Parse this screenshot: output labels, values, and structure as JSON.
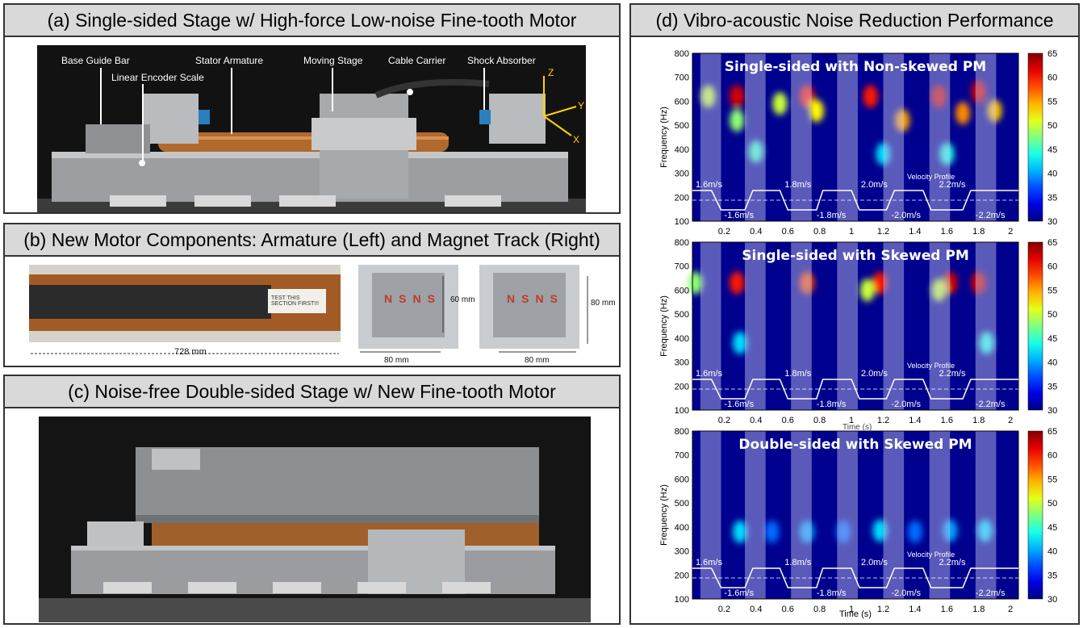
{
  "panel_a": {
    "title": "(a) Single-sided Stage w/ High-force Low-noise Fine-tooth Motor",
    "labels": {
      "base_guide_bar": "Base Guide Bar",
      "linear_encoder": "Linear Encoder Scale",
      "stator_armature": "Stator Armature",
      "moving_stage": "Moving Stage",
      "cable_carrier": "Cable Carrier",
      "shock_absorber": "Shock Absorber"
    },
    "axes": {
      "z": "Z",
      "y": "Y",
      "x": "X"
    }
  },
  "panel_b": {
    "title": "(b) New Motor Components: Armature (Left) and Magnet Track (Right)",
    "armature_length": "728 mm",
    "note": "TEST THIS SECTION FIRST!!!",
    "track1": {
      "height": "60 mm",
      "width": "80 mm",
      "marks": [
        "N",
        "S",
        "N",
        "S"
      ]
    },
    "track2": {
      "height": "80 mm",
      "width": "80 mm",
      "marks": [
        "N",
        "S",
        "N",
        "S"
      ]
    }
  },
  "panel_c": {
    "title": "(c) Noise-free Double-sided Stage w/ New Fine-tooth Motor"
  },
  "panel_d": {
    "title": "(d) Vibro-acoustic Noise Reduction Performance",
    "x_overlap_label": "Time (s)",
    "x_label": "Time (s)",
    "colors": {
      "bar_low": "#00008f",
      "bar_high": "#800000",
      "profile": "#ffffff",
      "band": "#c8c8f0"
    }
  },
  "chart_data": [
    {
      "type": "heatmap",
      "title": "Single-sided with Non-skewed PM",
      "ylabel": "Frequency (Hz)",
      "xlim": [
        0,
        2.05
      ],
      "ylim": [
        100,
        800
      ],
      "x_ticks": [
        0.2,
        0.4,
        0.6,
        0.8,
        1,
        1.2,
        1.4,
        1.6,
        1.8,
        2
      ],
      "y_ticks": [
        100,
        200,
        300,
        400,
        500,
        600,
        700,
        800
      ],
      "colorbar": {
        "range": [
          30,
          65
        ],
        "ticks": [
          30,
          35,
          40,
          45,
          50,
          55,
          60,
          65
        ]
      },
      "velocity_profile_label": "Velocity Profile",
      "velocity_labels": [
        "1.6m/s",
        "-1.6m/s",
        "1.8m/s",
        "-1.8m/s",
        "2.0m/s",
        "-2.0m/s",
        "2.2m/s",
        "-2.2m/s"
      ],
      "hotspots": [
        {
          "t": 0.28,
          "f": 620,
          "level": 62
        },
        {
          "t": 0.28,
          "f": 520,
          "level": 48
        },
        {
          "t": 0.55,
          "f": 590,
          "level": 50
        },
        {
          "t": 0.72,
          "f": 620,
          "level": 60
        },
        {
          "t": 0.78,
          "f": 560,
          "level": 52
        },
        {
          "t": 1.12,
          "f": 620,
          "level": 60
        },
        {
          "t": 1.32,
          "f": 520,
          "level": 55
        },
        {
          "t": 1.55,
          "f": 620,
          "level": 62
        },
        {
          "t": 1.7,
          "f": 550,
          "level": 56
        },
        {
          "t": 1.8,
          "f": 640,
          "level": 62
        },
        {
          "t": 1.9,
          "f": 560,
          "level": 54
        },
        {
          "t": 0.1,
          "f": 620,
          "level": 50
        },
        {
          "t": 0.4,
          "f": 390,
          "level": 45
        },
        {
          "t": 1.2,
          "f": 380,
          "level": 42
        },
        {
          "t": 1.6,
          "f": 380,
          "level": 44
        }
      ]
    },
    {
      "type": "heatmap",
      "title": "Single-sided with Skewed PM",
      "ylabel": "Frequency (Hz)",
      "xlim": [
        0,
        2.05
      ],
      "ylim": [
        100,
        800
      ],
      "x_ticks": [
        0.2,
        0.4,
        0.6,
        0.8,
        1,
        1.2,
        1.4,
        1.6,
        1.8,
        2
      ],
      "y_ticks": [
        100,
        200,
        300,
        400,
        500,
        600,
        700,
        800
      ],
      "colorbar": {
        "range": [
          30,
          65
        ],
        "ticks": [
          30,
          35,
          40,
          45,
          50,
          55,
          60,
          65
        ]
      },
      "velocity_profile_label": "Velocity Profile",
      "velocity_labels": [
        "1.6m/s",
        "-1.6m/s",
        "1.8m/s",
        "-1.8m/s",
        "2.0m/s",
        "-2.0m/s",
        "2.2m/s",
        "-2.2m/s"
      ],
      "hotspots": [
        {
          "t": 0.28,
          "f": 630,
          "level": 60
        },
        {
          "t": 0.72,
          "f": 630,
          "level": 58
        },
        {
          "t": 1.18,
          "f": 630,
          "level": 60
        },
        {
          "t": 1.62,
          "f": 630,
          "level": 62
        },
        {
          "t": 1.8,
          "f": 630,
          "level": 62
        },
        {
          "t": 0.02,
          "f": 630,
          "level": 48
        },
        {
          "t": 1.1,
          "f": 600,
          "level": 50
        },
        {
          "t": 1.55,
          "f": 600,
          "level": 50
        },
        {
          "t": 0.3,
          "f": 380,
          "level": 42
        },
        {
          "t": 1.85,
          "f": 380,
          "level": 44
        }
      ]
    },
    {
      "type": "heatmap",
      "title": "Double-sided with Skewed PM",
      "ylabel": "Frequency (Hz)",
      "xlabel": "Time (s)",
      "xlim": [
        0,
        2.05
      ],
      "ylim": [
        100,
        800
      ],
      "x_ticks": [
        0.2,
        0.4,
        0.6,
        0.8,
        1,
        1.2,
        1.4,
        1.6,
        1.8,
        2
      ],
      "y_ticks": [
        100,
        200,
        300,
        400,
        500,
        600,
        700,
        800
      ],
      "colorbar": {
        "range": [
          30,
          65
        ],
        "ticks": [
          30,
          35,
          40,
          45,
          50,
          55,
          60,
          65
        ]
      },
      "velocity_profile_label": "Velocity Profile",
      "velocity_labels": [
        "1.6m/s",
        "-1.6m/s",
        "1.8m/s",
        "-1.8m/s",
        "2.0m/s",
        "-2.0m/s",
        "2.2m/s",
        "-2.2m/s"
      ],
      "hotspots": [
        {
          "t": 0.3,
          "f": 380,
          "level": 42
        },
        {
          "t": 0.72,
          "f": 380,
          "level": 40
        },
        {
          "t": 1.18,
          "f": 385,
          "level": 42
        },
        {
          "t": 1.62,
          "f": 385,
          "level": 40
        },
        {
          "t": 1.84,
          "f": 385,
          "level": 42
        },
        {
          "t": 0.5,
          "f": 380,
          "level": 38
        },
        {
          "t": 0.95,
          "f": 380,
          "level": 38
        },
        {
          "t": 1.4,
          "f": 380,
          "level": 38
        }
      ]
    }
  ]
}
